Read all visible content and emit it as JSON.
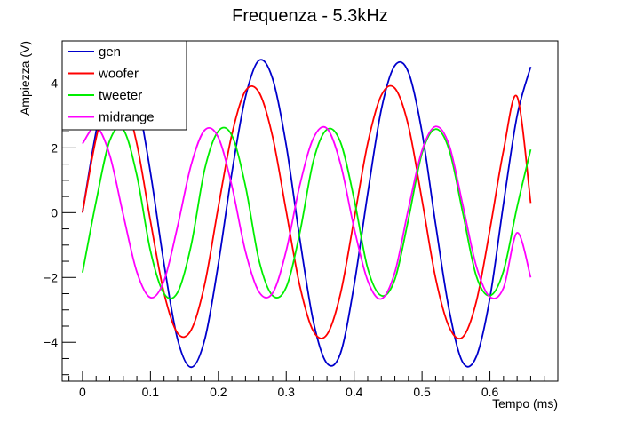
{
  "chart_data": {
    "type": "line",
    "title": "Frequenza - 5.3kHz",
    "xlabel": "Tempo (ms)",
    "ylabel": "Ampiezza (V)",
    "xlim": [
      -0.03,
      0.7
    ],
    "ylim": [
      -5.2,
      5.3
    ],
    "x_ticks": [
      0,
      0.1,
      0.2,
      0.3,
      0.4,
      0.5,
      0.6
    ],
    "x_tick_labels": [
      "0",
      "0.1",
      "0.2",
      "0.3",
      "0.4",
      "0.5",
      "0.6"
    ],
    "y_ticks": [
      -4,
      -2,
      0,
      2,
      4
    ],
    "y_tick_labels": [
      "−4",
      "−2",
      "0",
      "2",
      "4"
    ],
    "grid": false,
    "legend_position": "top-left",
    "series": [
      {
        "name": "gen",
        "color": "#0000cc",
        "x": [
          0,
          0.02,
          0.04,
          0.06,
          0.08,
          0.1,
          0.12,
          0.14,
          0.16,
          0.18,
          0.2,
          0.22,
          0.24,
          0.26,
          0.28,
          0.3,
          0.32,
          0.34,
          0.36,
          0.38,
          0.4,
          0.42,
          0.44,
          0.46,
          0.48,
          0.5,
          0.52,
          0.54,
          0.56,
          0.58,
          0.6,
          0.62,
          0.64,
          0.66
        ],
        "values": [
          0.0,
          2.51,
          4.3,
          4.7,
          3.57,
          1.24,
          -1.58,
          -3.91,
          -4.77,
          -3.91,
          -1.58,
          1.24,
          3.57,
          4.7,
          4.13,
          2.08,
          -0.81,
          -3.36,
          -4.65,
          -4.33,
          -2.23,
          0.59,
          3.18,
          4.54,
          4.33,
          2.48,
          -0.36,
          -3.01,
          -4.62,
          -4.44,
          -2.63,
          0.28,
          2.99,
          4.5
        ]
      },
      {
        "name": "woofer",
        "color": "#ff0000",
        "x": [
          0,
          0.02,
          0.04,
          0.06,
          0.08,
          0.1,
          0.12,
          0.14,
          0.16,
          0.18,
          0.2,
          0.22,
          0.24,
          0.26,
          0.28,
          0.3,
          0.32,
          0.34,
          0.36,
          0.38,
          0.4,
          0.42,
          0.44,
          0.46,
          0.48,
          0.5,
          0.52,
          0.54,
          0.56,
          0.58,
          0.6,
          0.62,
          0.64,
          0.66
        ],
        "values": [
          0.0,
          2.3,
          3.71,
          3.6,
          2.12,
          -0.26,
          -2.48,
          -3.72,
          -3.62,
          -2.2,
          0.18,
          2.42,
          3.76,
          3.71,
          2.34,
          0.04,
          -2.26,
          -3.66,
          -3.76,
          -2.49,
          -0.2,
          2.14,
          3.62,
          3.84,
          2.68,
          0.39,
          -2.02,
          -3.53,
          -3.84,
          -2.74,
          -0.52,
          1.92,
          3.58,
          0.3
        ]
      },
      {
        "name": "tweeter",
        "color": "#00ee00",
        "x": [
          0,
          0.02,
          0.04,
          0.06,
          0.08,
          0.1,
          0.12,
          0.14,
          0.16,
          0.18,
          0.2,
          0.22,
          0.24,
          0.26,
          0.28,
          0.3,
          0.32,
          0.34,
          0.36,
          0.38,
          0.4,
          0.42,
          0.44,
          0.46,
          0.48,
          0.5,
          0.52,
          0.54,
          0.56,
          0.58,
          0.6,
          0.62,
          0.64,
          0.66
        ],
        "values": [
          -1.85,
          0.35,
          2.22,
          2.56,
          1.15,
          -1.18,
          -2.5,
          -2.46,
          -1.0,
          1.35,
          2.52,
          2.38,
          0.82,
          -1.48,
          -2.56,
          -2.3,
          -0.62,
          1.6,
          2.57,
          2.17,
          0.42,
          -1.72,
          -2.56,
          -2.06,
          -0.2,
          1.84,
          2.58,
          1.94,
          0.0,
          -1.96,
          -2.56,
          -1.8,
          0.18,
          1.95
        ]
      },
      {
        "name": "midrange",
        "color": "#ff00ff",
        "x": [
          0,
          0.02,
          0.04,
          0.06,
          0.08,
          0.1,
          0.12,
          0.14,
          0.16,
          0.18,
          0.2,
          0.22,
          0.24,
          0.26,
          0.28,
          0.3,
          0.32,
          0.34,
          0.36,
          0.38,
          0.4,
          0.42,
          0.44,
          0.46,
          0.48,
          0.5,
          0.52,
          0.54,
          0.56,
          0.58,
          0.6,
          0.62,
          0.64,
          0.66
        ],
        "values": [
          2.13,
          2.65,
          1.78,
          -0.07,
          -1.83,
          -2.62,
          -2.1,
          -0.42,
          1.48,
          2.55,
          2.32,
          0.82,
          -1.2,
          -2.45,
          -2.48,
          -1.17,
          0.85,
          2.3,
          2.6,
          1.5,
          -0.48,
          -2.1,
          -2.66,
          -1.84,
          0.12,
          1.92,
          2.66,
          2.08,
          0.24,
          -1.66,
          -2.6,
          -2.32,
          -0.62,
          -2.0
        ]
      }
    ]
  }
}
